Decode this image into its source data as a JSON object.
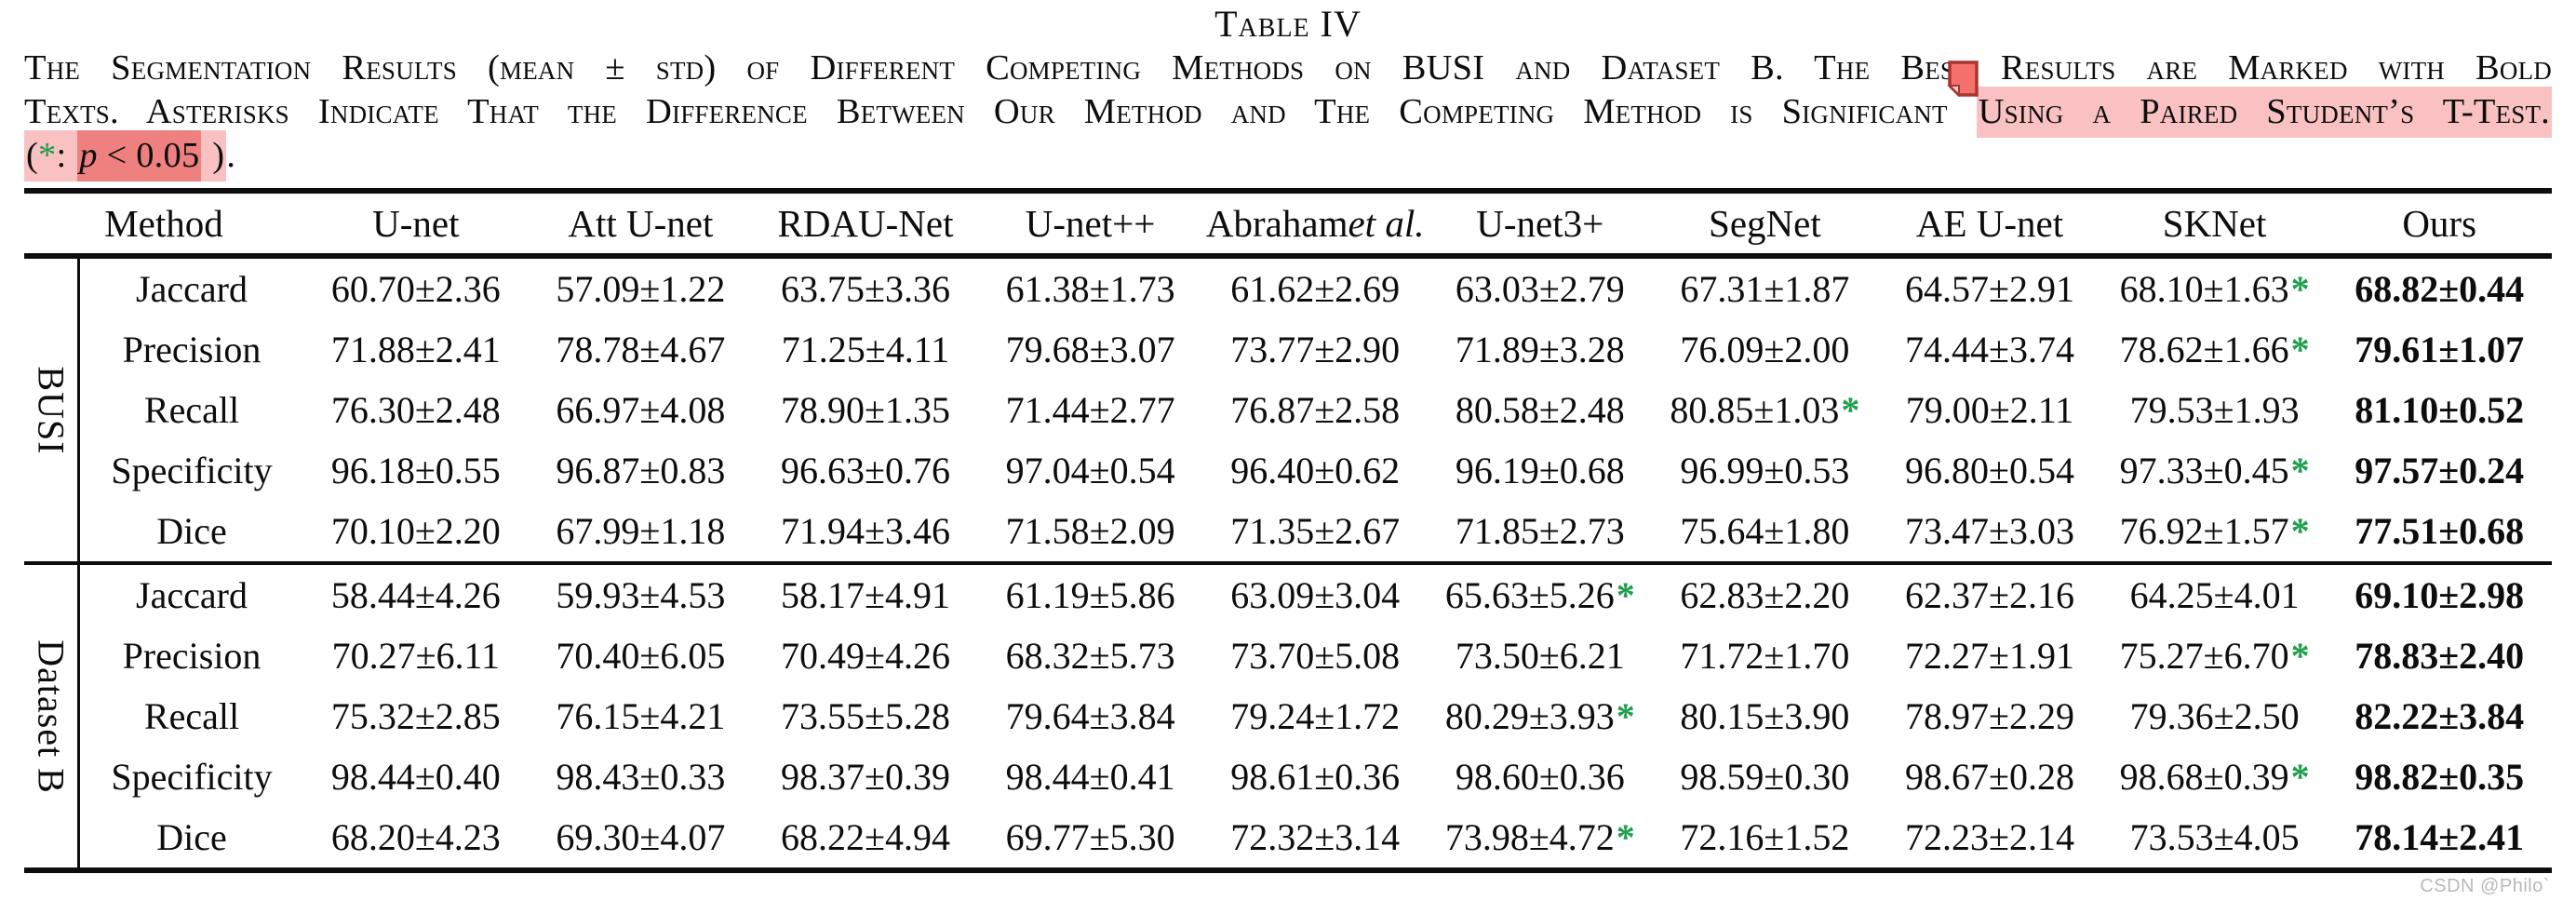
{
  "page": {
    "title": "Table IV"
  },
  "caption": {
    "l1": "The Segmentation Results (mean ± std) of Different Competing Methods on BUSI and Dataset B. The Best Results are Marked with Bold",
    "l2_plain": "Texts. Asterisks Indicate That the Difference Between Our Method and The Competing Method is Significant ",
    "l2_highlight": "Using a Paired Student’s T-Test.",
    "l3_open": "(",
    "l3_star": "*",
    "l3_colon": ": ",
    "l3_formula_var": "p",
    "l3_formula_rest": " < 0.05",
    "l3_close": " )",
    "l3_period": "."
  },
  "colors": {
    "highlight_pink": "#f9c1c1",
    "highlight_salmon": "#ee8080",
    "star_green": "#1f9e4d",
    "note_icon_fill": "#f4716e",
    "note_icon_border": "#a93532"
  },
  "watermark": "CSDN @Philo`",
  "table": {
    "columns": [
      {
        "text": "Method"
      },
      {
        "text": "U-net"
      },
      {
        "text": "Att U-net"
      },
      {
        "text": "RDAU-Net"
      },
      {
        "text": "U-net++"
      },
      {
        "text": "Abraham ",
        "italic": "et al."
      },
      {
        "text": "U-net3+"
      },
      {
        "text": "SegNet"
      },
      {
        "text": "AE U-net"
      },
      {
        "text": "SKNet"
      },
      {
        "text": "Ours"
      }
    ],
    "groups": [
      {
        "label": "BUSI",
        "rows": [
          {
            "metric": "Jaccard",
            "cells": [
              {
                "v": "60.70±2.36"
              },
              {
                "v": "57.09±1.22"
              },
              {
                "v": "63.75±3.36"
              },
              {
                "v": "61.38±1.73"
              },
              {
                "v": "61.62±2.69"
              },
              {
                "v": "63.03±2.79"
              },
              {
                "v": "67.31±1.87"
              },
              {
                "v": "64.57±2.91"
              },
              {
                "v": "68.10±1.63",
                "star": true
              },
              {
                "v": "68.82±0.44",
                "bold": true
              }
            ]
          },
          {
            "metric": "Precision",
            "cells": [
              {
                "v": "71.88±2.41"
              },
              {
                "v": "78.78±4.67"
              },
              {
                "v": "71.25±4.11"
              },
              {
                "v": "79.68±3.07"
              },
              {
                "v": "73.77±2.90"
              },
              {
                "v": "71.89±3.28"
              },
              {
                "v": "76.09±2.00"
              },
              {
                "v": "74.44±3.74"
              },
              {
                "v": "78.62±1.66",
                "star": true
              },
              {
                "v": "79.61±1.07",
                "bold": true
              }
            ]
          },
          {
            "metric": "Recall",
            "cells": [
              {
                "v": "76.30±2.48"
              },
              {
                "v": "66.97±4.08"
              },
              {
                "v": "78.90±1.35"
              },
              {
                "v": "71.44±2.77"
              },
              {
                "v": "76.87±2.58"
              },
              {
                "v": "80.58±2.48"
              },
              {
                "v": "80.85±1.03",
                "star": true
              },
              {
                "v": "79.00±2.11"
              },
              {
                "v": "79.53±1.93"
              },
              {
                "v": "81.10±0.52",
                "bold": true
              }
            ]
          },
          {
            "metric": "Specificity",
            "cells": [
              {
                "v": "96.18±0.55"
              },
              {
                "v": "96.87±0.83"
              },
              {
                "v": "96.63±0.76"
              },
              {
                "v": "97.04±0.54"
              },
              {
                "v": "96.40±0.62"
              },
              {
                "v": "96.19±0.68"
              },
              {
                "v": "96.99±0.53"
              },
              {
                "v": "96.80±0.54"
              },
              {
                "v": "97.33±0.45",
                "star": true
              },
              {
                "v": "97.57±0.24",
                "bold": true
              }
            ]
          },
          {
            "metric": "Dice",
            "cells": [
              {
                "v": "70.10±2.20"
              },
              {
                "v": "67.99±1.18"
              },
              {
                "v": "71.94±3.46"
              },
              {
                "v": "71.58±2.09"
              },
              {
                "v": "71.35±2.67"
              },
              {
                "v": "71.85±2.73"
              },
              {
                "v": "75.64±1.80"
              },
              {
                "v": "73.47±3.03"
              },
              {
                "v": "76.92±1.57",
                "star": true
              },
              {
                "v": "77.51±0.68",
                "bold": true
              }
            ]
          }
        ]
      },
      {
        "label": "Dataset B",
        "rows": [
          {
            "metric": "Jaccard",
            "cells": [
              {
                "v": "58.44±4.26"
              },
              {
                "v": "59.93±4.53"
              },
              {
                "v": "58.17±4.91"
              },
              {
                "v": "61.19±5.86"
              },
              {
                "v": "63.09±3.04"
              },
              {
                "v": "65.63±5.26",
                "star": true
              },
              {
                "v": "62.83±2.20"
              },
              {
                "v": "62.37±2.16"
              },
              {
                "v": "64.25±4.01"
              },
              {
                "v": "69.10±2.98",
                "bold": true
              }
            ]
          },
          {
            "metric": "Precision",
            "cells": [
              {
                "v": "70.27±6.11"
              },
              {
                "v": "70.40±6.05"
              },
              {
                "v": "70.49±4.26"
              },
              {
                "v": "68.32±5.73"
              },
              {
                "v": "73.70±5.08"
              },
              {
                "v": "73.50±6.21"
              },
              {
                "v": "71.72±1.70"
              },
              {
                "v": "72.27±1.91"
              },
              {
                "v": "75.27±6.70",
                "star": true
              },
              {
                "v": "78.83±2.40",
                "bold": true
              }
            ]
          },
          {
            "metric": "Recall",
            "cells": [
              {
                "v": "75.32±2.85"
              },
              {
                "v": "76.15±4.21"
              },
              {
                "v": "73.55±5.28"
              },
              {
                "v": "79.64±3.84"
              },
              {
                "v": "79.24±1.72"
              },
              {
                "v": "80.29±3.93",
                "star": true
              },
              {
                "v": "80.15±3.90"
              },
              {
                "v": "78.97±2.29"
              },
              {
                "v": "79.36±2.50"
              },
              {
                "v": "82.22±3.84",
                "bold": true
              }
            ]
          },
          {
            "metric": "Specificity",
            "cells": [
              {
                "v": "98.44±0.40"
              },
              {
                "v": "98.43±0.33"
              },
              {
                "v": "98.37±0.39"
              },
              {
                "v": "98.44±0.41"
              },
              {
                "v": "98.61±0.36"
              },
              {
                "v": "98.60±0.36"
              },
              {
                "v": "98.59±0.30"
              },
              {
                "v": "98.67±0.28"
              },
              {
                "v": "98.68±0.39",
                "star": true
              },
              {
                "v": "98.82±0.35",
                "bold": true
              }
            ]
          },
          {
            "metric": "Dice",
            "cells": [
              {
                "v": "68.20±4.23"
              },
              {
                "v": "69.30±4.07"
              },
              {
                "v": "68.22±4.94"
              },
              {
                "v": "69.77±5.30"
              },
              {
                "v": "72.32±3.14"
              },
              {
                "v": "73.98±4.72",
                "star": true
              },
              {
                "v": "72.16±1.52"
              },
              {
                "v": "72.23±2.14"
              },
              {
                "v": "73.53±4.05"
              },
              {
                "v": "78.14±2.41",
                "bold": true
              }
            ]
          }
        ]
      }
    ]
  }
}
